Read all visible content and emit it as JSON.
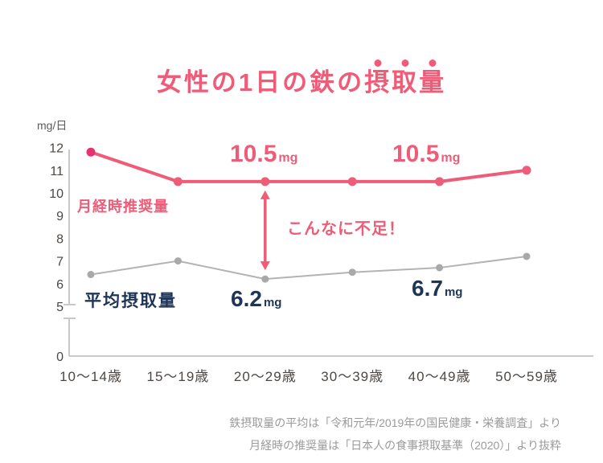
{
  "title": {
    "main": "女性の1日の鉄の",
    "emphasis": "摂取量"
  },
  "colors": {
    "accent_pink": "#ee5c78",
    "deep_pink_marker": "#e8326f",
    "navy": "#1f3557",
    "gray_line": "#b3b3b3",
    "gray_marker": "#a9a9a9",
    "axis": "#c9c9c9",
    "tick_text": "#4c4743",
    "footer_text": "#9a9a9a"
  },
  "chart_data": {
    "type": "line",
    "title": "女性の1日の鉄の摂取量",
    "unit_label": "mg/日",
    "xlabel": "",
    "ylabel": "mg/日",
    "categories": [
      "10〜14歳",
      "15〜19歳",
      "20〜29歳",
      "30〜39歳",
      "40〜49歳",
      "50〜59歳"
    ],
    "series": [
      {
        "name": "月経時推奨量",
        "values": [
          11.8,
          10.5,
          10.5,
          10.5,
          10.5,
          11.0
        ],
        "color": "#ee5c78",
        "start_marker_color": "#e8326f"
      },
      {
        "name": "平均摂取量",
        "values": [
          6.4,
          7.0,
          6.2,
          6.5,
          6.7,
          7.2
        ],
        "color": "#b3b3b3",
        "marker_color": "#a9a9a9"
      }
    ],
    "y_ticks": [
      12,
      11,
      10,
      9,
      8,
      7,
      6,
      5,
      0
    ],
    "ylim": [
      0,
      12
    ],
    "axis_break_between": [
      0,
      5
    ],
    "grid": false,
    "legend_position": "inline-labels"
  },
  "annotations": {
    "recommended_value_label_1": {
      "value": "10.5",
      "unit": "mg"
    },
    "recommended_value_label_2": {
      "value": "10.5",
      "unit": "mg"
    },
    "average_value_label_low": {
      "value": "6.2",
      "unit": "mg"
    },
    "average_value_label_mid": {
      "value": "6.7",
      "unit": "mg"
    },
    "shortage_note": "こんなに不足！",
    "gap_arrow": {
      "category_index": 2
    }
  },
  "footer": {
    "line1": "鉄摂取量の平均は「令和元年/2019年の国民健康・栄養調査」より",
    "line2": "月経時の推奨量は「日本人の食事摂取基準（2020）」より抜粋"
  }
}
